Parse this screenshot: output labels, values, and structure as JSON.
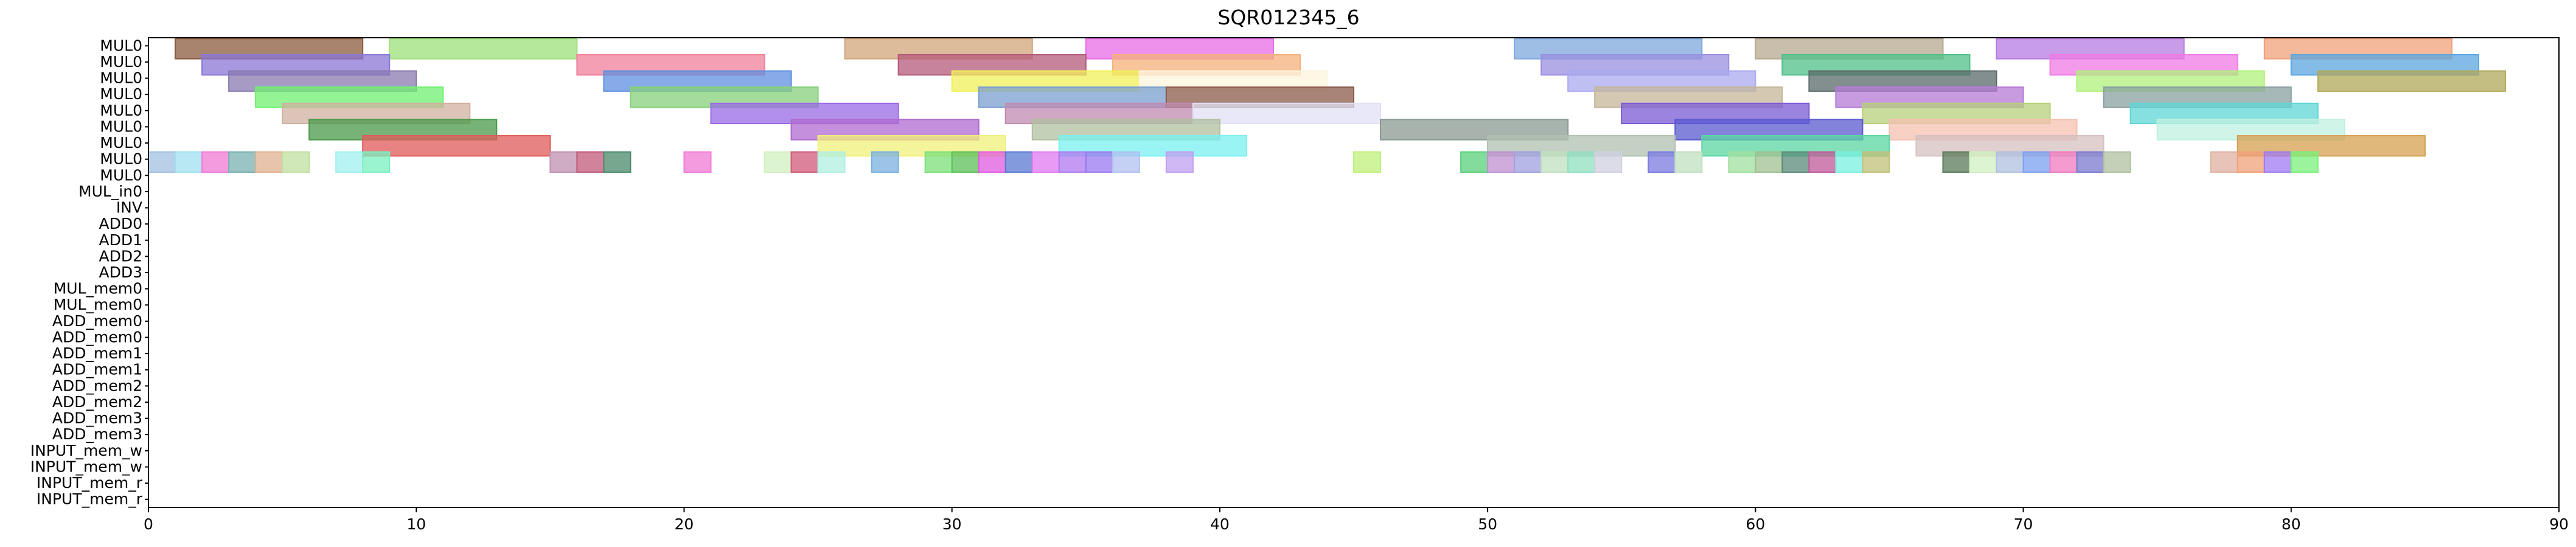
{
  "chart_data": {
    "type": "gantt",
    "title": "SQR012345_6",
    "xlim": [
      0,
      90
    ],
    "x_ticks": [
      0,
      10,
      20,
      30,
      40,
      50,
      60,
      70,
      80,
      90
    ],
    "grid": false,
    "rows": [
      "MUL0",
      "MUL0",
      "MUL0",
      "MUL0",
      "MUL0",
      "MUL0",
      "MUL0",
      "MUL0",
      "MUL0",
      "MUL_in0",
      "INV",
      "ADD0",
      "ADD1",
      "ADD2",
      "ADD3",
      "MUL_mem0",
      "MUL_mem0",
      "ADD_mem0",
      "ADD_mem0",
      "ADD_mem1",
      "ADD_mem1",
      "ADD_mem2",
      "ADD_mem2",
      "ADD_mem3",
      "ADD_mem3",
      "INPUT_mem_w",
      "INPUT_mem_w",
      "INPUT_mem_r",
      "INPUT_mem_r"
    ],
    "tasks": [
      {
        "row": 0,
        "start": 1,
        "end": 8,
        "color": "#8b5a3c"
      },
      {
        "row": 0,
        "start": 9,
        "end": 16,
        "color": "#9ee07a"
      },
      {
        "row": 0,
        "start": 26,
        "end": 33,
        "color": "#d2a679"
      },
      {
        "row": 0,
        "start": 35,
        "end": 42,
        "color": "#e76ce6"
      },
      {
        "row": 0,
        "start": 51,
        "end": 58,
        "color": "#7ea8de"
      },
      {
        "row": 0,
        "start": 60,
        "end": 67,
        "color": "#b5a88f"
      },
      {
        "row": 0,
        "start": 69,
        "end": 76,
        "color": "#b57be0"
      },
      {
        "row": 0,
        "start": 79,
        "end": 86,
        "color": "#f0a07a"
      },
      {
        "row": 1,
        "start": 2,
        "end": 9,
        "color": "#8a76d6"
      },
      {
        "row": 1,
        "start": 16,
        "end": 23,
        "color": "#f07f9a"
      },
      {
        "row": 1,
        "start": 28,
        "end": 35,
        "color": "#b35a7a"
      },
      {
        "row": 1,
        "start": 36,
        "end": 43,
        "color": "#f5b07a"
      },
      {
        "row": 1,
        "start": 52,
        "end": 59,
        "color": "#9a8fe0"
      },
      {
        "row": 1,
        "start": 61,
        "end": 68,
        "color": "#4fc088"
      },
      {
        "row": 1,
        "start": 71,
        "end": 78,
        "color": "#f07ae6"
      },
      {
        "row": 1,
        "start": 80,
        "end": 87,
        "color": "#5ba5e0"
      },
      {
        "row": 2,
        "start": 3,
        "end": 10,
        "color": "#8a7ab0"
      },
      {
        "row": 2,
        "start": 17,
        "end": 24,
        "color": "#5f8fe0"
      },
      {
        "row": 2,
        "start": 30,
        "end": 37,
        "color": "#f0f05a"
      },
      {
        "row": 2,
        "start": 37,
        "end": 44,
        "color": "#fbf5dc"
      },
      {
        "row": 2,
        "start": 53,
        "end": 60,
        "color": "#a9a9f0"
      },
      {
        "row": 2,
        "start": 62,
        "end": 69,
        "color": "#5a6a6a"
      },
      {
        "row": 2,
        "start": 72,
        "end": 79,
        "color": "#b0f07a"
      },
      {
        "row": 2,
        "start": 81,
        "end": 88,
        "color": "#b0a85a"
      },
      {
        "row": 3,
        "start": 4,
        "end": 11,
        "color": "#6ff06f"
      },
      {
        "row": 3,
        "start": 18,
        "end": 25,
        "color": "#85d07a"
      },
      {
        "row": 3,
        "start": 31,
        "end": 38,
        "color": "#7a9fd0"
      },
      {
        "row": 3,
        "start": 38,
        "end": 45,
        "color": "#8b5a4a"
      },
      {
        "row": 3,
        "start": 54,
        "end": 61,
        "color": "#c5b59a"
      },
      {
        "row": 3,
        "start": 63,
        "end": 70,
        "color": "#b57ad6"
      },
      {
        "row": 3,
        "start": 73,
        "end": 80,
        "color": "#8aa0a0"
      },
      {
        "row": 4,
        "start": 5,
        "end": 12,
        "color": "#d0b0a0"
      },
      {
        "row": 4,
        "start": 21,
        "end": 28,
        "color": "#9a6ae6"
      },
      {
        "row": 4,
        "start": 32,
        "end": 39,
        "color": "#c08ab0"
      },
      {
        "row": 4,
        "start": 39,
        "end": 46,
        "color": "#e0e0f5"
      },
      {
        "row": 4,
        "start": 55,
        "end": 62,
        "color": "#7a5ad6"
      },
      {
        "row": 4,
        "start": 64,
        "end": 71,
        "color": "#b5d07a"
      },
      {
        "row": 4,
        "start": 74,
        "end": 81,
        "color": "#5fd6d6"
      },
      {
        "row": 5,
        "start": 6,
        "end": 13,
        "color": "#4a9a4a"
      },
      {
        "row": 5,
        "start": 24,
        "end": 31,
        "color": "#b06ad0"
      },
      {
        "row": 5,
        "start": 33,
        "end": 40,
        "color": "#b0c0a0"
      },
      {
        "row": 5,
        "start": 46,
        "end": 53,
        "color": "#8a9a90"
      },
      {
        "row": 5,
        "start": 57,
        "end": 64,
        "color": "#5a5ad0"
      },
      {
        "row": 5,
        "start": 65,
        "end": 72,
        "color": "#f5c0b0"
      },
      {
        "row": 5,
        "start": 75,
        "end": 82,
        "color": "#c0f0e0"
      },
      {
        "row": 6,
        "start": 8,
        "end": 15,
        "color": "#e05a5a"
      },
      {
        "row": 6,
        "start": 25,
        "end": 32,
        "color": "#f0f07a"
      },
      {
        "row": 6,
        "start": 34,
        "end": 41,
        "color": "#7af0f0"
      },
      {
        "row": 6,
        "start": 50,
        "end": 57,
        "color": "#b0c0b0"
      },
      {
        "row": 6,
        "start": 58,
        "end": 65,
        "color": "#5ad6a0"
      },
      {
        "row": 6,
        "start": 66,
        "end": 73,
        "color": "#d6c0c0"
      },
      {
        "row": 6,
        "start": 78,
        "end": 85,
        "color": "#d6a050"
      },
      {
        "row": 7,
        "start": 0,
        "end": 1,
        "color": "#a0c0e0"
      },
      {
        "row": 7,
        "start": 1,
        "end": 2,
        "color": "#a0e0f0"
      },
      {
        "row": 7,
        "start": 2,
        "end": 3,
        "color": "#f07ad6"
      },
      {
        "row": 7,
        "start": 3,
        "end": 4,
        "color": "#7ab0b0"
      },
      {
        "row": 7,
        "start": 4,
        "end": 5,
        "color": "#e0b090"
      },
      {
        "row": 7,
        "start": 5,
        "end": 6,
        "color": "#c0e0a0"
      },
      {
        "row": 7,
        "start": 7,
        "end": 8,
        "color": "#a0f0f0"
      },
      {
        "row": 7,
        "start": 8,
        "end": 9,
        "color": "#7af0c0"
      },
      {
        "row": 7,
        "start": 15,
        "end": 16,
        "color": "#c090b0"
      },
      {
        "row": 7,
        "start": 16,
        "end": 17,
        "color": "#c05a7a"
      },
      {
        "row": 7,
        "start": 17,
        "end": 18,
        "color": "#4a8a6a"
      },
      {
        "row": 7,
        "start": 20,
        "end": 21,
        "color": "#f07ad6"
      },
      {
        "row": 7,
        "start": 23,
        "end": 24,
        "color": "#d0f0c0"
      },
      {
        "row": 7,
        "start": 24,
        "end": 25,
        "color": "#d05a7a"
      },
      {
        "row": 7,
        "start": 25,
        "end": 26,
        "color": "#b0f0e0"
      },
      {
        "row": 7,
        "start": 27,
        "end": 28,
        "color": "#7ab0e0"
      },
      {
        "row": 7,
        "start": 29,
        "end": 30,
        "color": "#7ae07a"
      },
      {
        "row": 7,
        "start": 30,
        "end": 31,
        "color": "#5ac05a"
      },
      {
        "row": 7,
        "start": 31,
        "end": 32,
        "color": "#e05ae0"
      },
      {
        "row": 7,
        "start": 32,
        "end": 33,
        "color": "#5a7ad0"
      },
      {
        "row": 7,
        "start": 33,
        "end": 34,
        "color": "#e07af0"
      },
      {
        "row": 7,
        "start": 34,
        "end": 35,
        "color": "#b07af0"
      },
      {
        "row": 7,
        "start": 35,
        "end": 36,
        "color": "#9a7af0"
      },
      {
        "row": 7,
        "start": 36,
        "end": 37,
        "color": "#b0c0f0"
      },
      {
        "row": 7,
        "start": 38,
        "end": 39,
        "color": "#c0a0f0"
      },
      {
        "row": 7,
        "start": 45,
        "end": 46,
        "color": "#c0f07a"
      },
      {
        "row": 7,
        "start": 49,
        "end": 50,
        "color": "#5ad07a"
      },
      {
        "row": 7,
        "start": 50,
        "end": 51,
        "color": "#c090d0"
      },
      {
        "row": 7,
        "start": 51,
        "end": 52,
        "color": "#a0a0e0"
      },
      {
        "row": 7,
        "start": 52,
        "end": 53,
        "color": "#c0e0c0"
      },
      {
        "row": 7,
        "start": 53,
        "end": 54,
        "color": "#90e0c0"
      },
      {
        "row": 7,
        "start": 54,
        "end": 55,
        "color": "#d0d0e0"
      },
      {
        "row": 7,
        "start": 56,
        "end": 57,
        "color": "#7a7ae0"
      },
      {
        "row": 7,
        "start": 57,
        "end": 58,
        "color": "#c0e0c0"
      },
      {
        "row": 7,
        "start": 59,
        "end": 60,
        "color": "#a0e0a0"
      },
      {
        "row": 7,
        "start": 60,
        "end": 61,
        "color": "#a0c090"
      },
      {
        "row": 7,
        "start": 61,
        "end": 62,
        "color": "#5a8a7a"
      },
      {
        "row": 7,
        "start": 62,
        "end": 63,
        "color": "#c05a9a"
      },
      {
        "row": 7,
        "start": 63,
        "end": 64,
        "color": "#7af0e0"
      },
      {
        "row": 7,
        "start": 64,
        "end": 65,
        "color": "#c0c07a"
      },
      {
        "row": 7,
        "start": 67,
        "end": 68,
        "color": "#5a7a5a"
      },
      {
        "row": 7,
        "start": 68,
        "end": 69,
        "color": "#d0f0c0"
      },
      {
        "row": 7,
        "start": 69,
        "end": 70,
        "color": "#b0c0e0"
      },
      {
        "row": 7,
        "start": 70,
        "end": 71,
        "color": "#7aa0f0"
      },
      {
        "row": 7,
        "start": 71,
        "end": 72,
        "color": "#f07ac0"
      },
      {
        "row": 7,
        "start": 72,
        "end": 73,
        "color": "#7a7ad0"
      },
      {
        "row": 7,
        "start": 73,
        "end": 74,
        "color": "#b0c0a0"
      },
      {
        "row": 7,
        "start": 77,
        "end": 78,
        "color": "#e0b0a0"
      },
      {
        "row": 7,
        "start": 78,
        "end": 79,
        "color": "#f0a07a"
      },
      {
        "row": 7,
        "start": 79,
        "end": 80,
        "color": "#a07af0"
      },
      {
        "row": 7,
        "start": 80,
        "end": 81,
        "color": "#7af07a"
      }
    ]
  }
}
